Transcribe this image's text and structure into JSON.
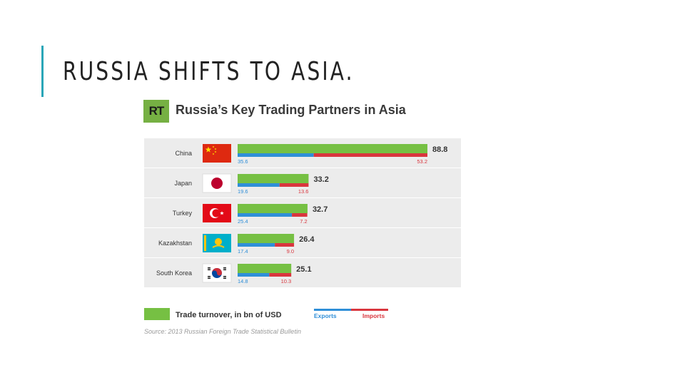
{
  "slide": {
    "title": "RUSSIA SHIFTS TO ASIA."
  },
  "logo": {
    "text": "RT"
  },
  "chart_data": {
    "type": "bar",
    "title": "Russia’s Key Trading Partners in Asia",
    "categories": [
      "China",
      "Japan",
      "Turkey",
      "Kazakhstan",
      "South Korea"
    ],
    "series": [
      {
        "name": "Trade turnover, in bn of USD",
        "values": [
          88.8,
          33.2,
          32.7,
          26.4,
          25.1
        ],
        "color": "#76c043"
      },
      {
        "name": "Exports",
        "values": [
          35.6,
          19.6,
          25.4,
          17.4,
          14.8
        ],
        "color": "#2f8fd8"
      },
      {
        "name": "Imports",
        "values": [
          53.2,
          13.6,
          7.2,
          9.0,
          10.3
        ],
        "color": "#d9363e"
      }
    ],
    "turnover_labels": [
      "88.8",
      "33.2",
      "32.7",
      "26.4",
      "25.1"
    ],
    "export_labels": [
      "35.6",
      "19.6",
      "25.4",
      "17.4",
      "14.8"
    ],
    "import_labels": [
      "53.2",
      "13.6",
      "7.2",
      "9.0",
      "10.3"
    ],
    "xlim": [
      0,
      88.8
    ],
    "flags": [
      "china-flag-icon",
      "japan-flag-icon",
      "turkey-flag-icon",
      "kazakhstan-flag-icon",
      "south-korea-flag-icon"
    ],
    "legend": {
      "turnover": "Trade turnover, in bn of USD",
      "exports": "Exports",
      "imports": "Imports",
      "placement": "bottom"
    },
    "source": "Source: 2013 Russian Foreign Trade Statistical Bulletin"
  }
}
